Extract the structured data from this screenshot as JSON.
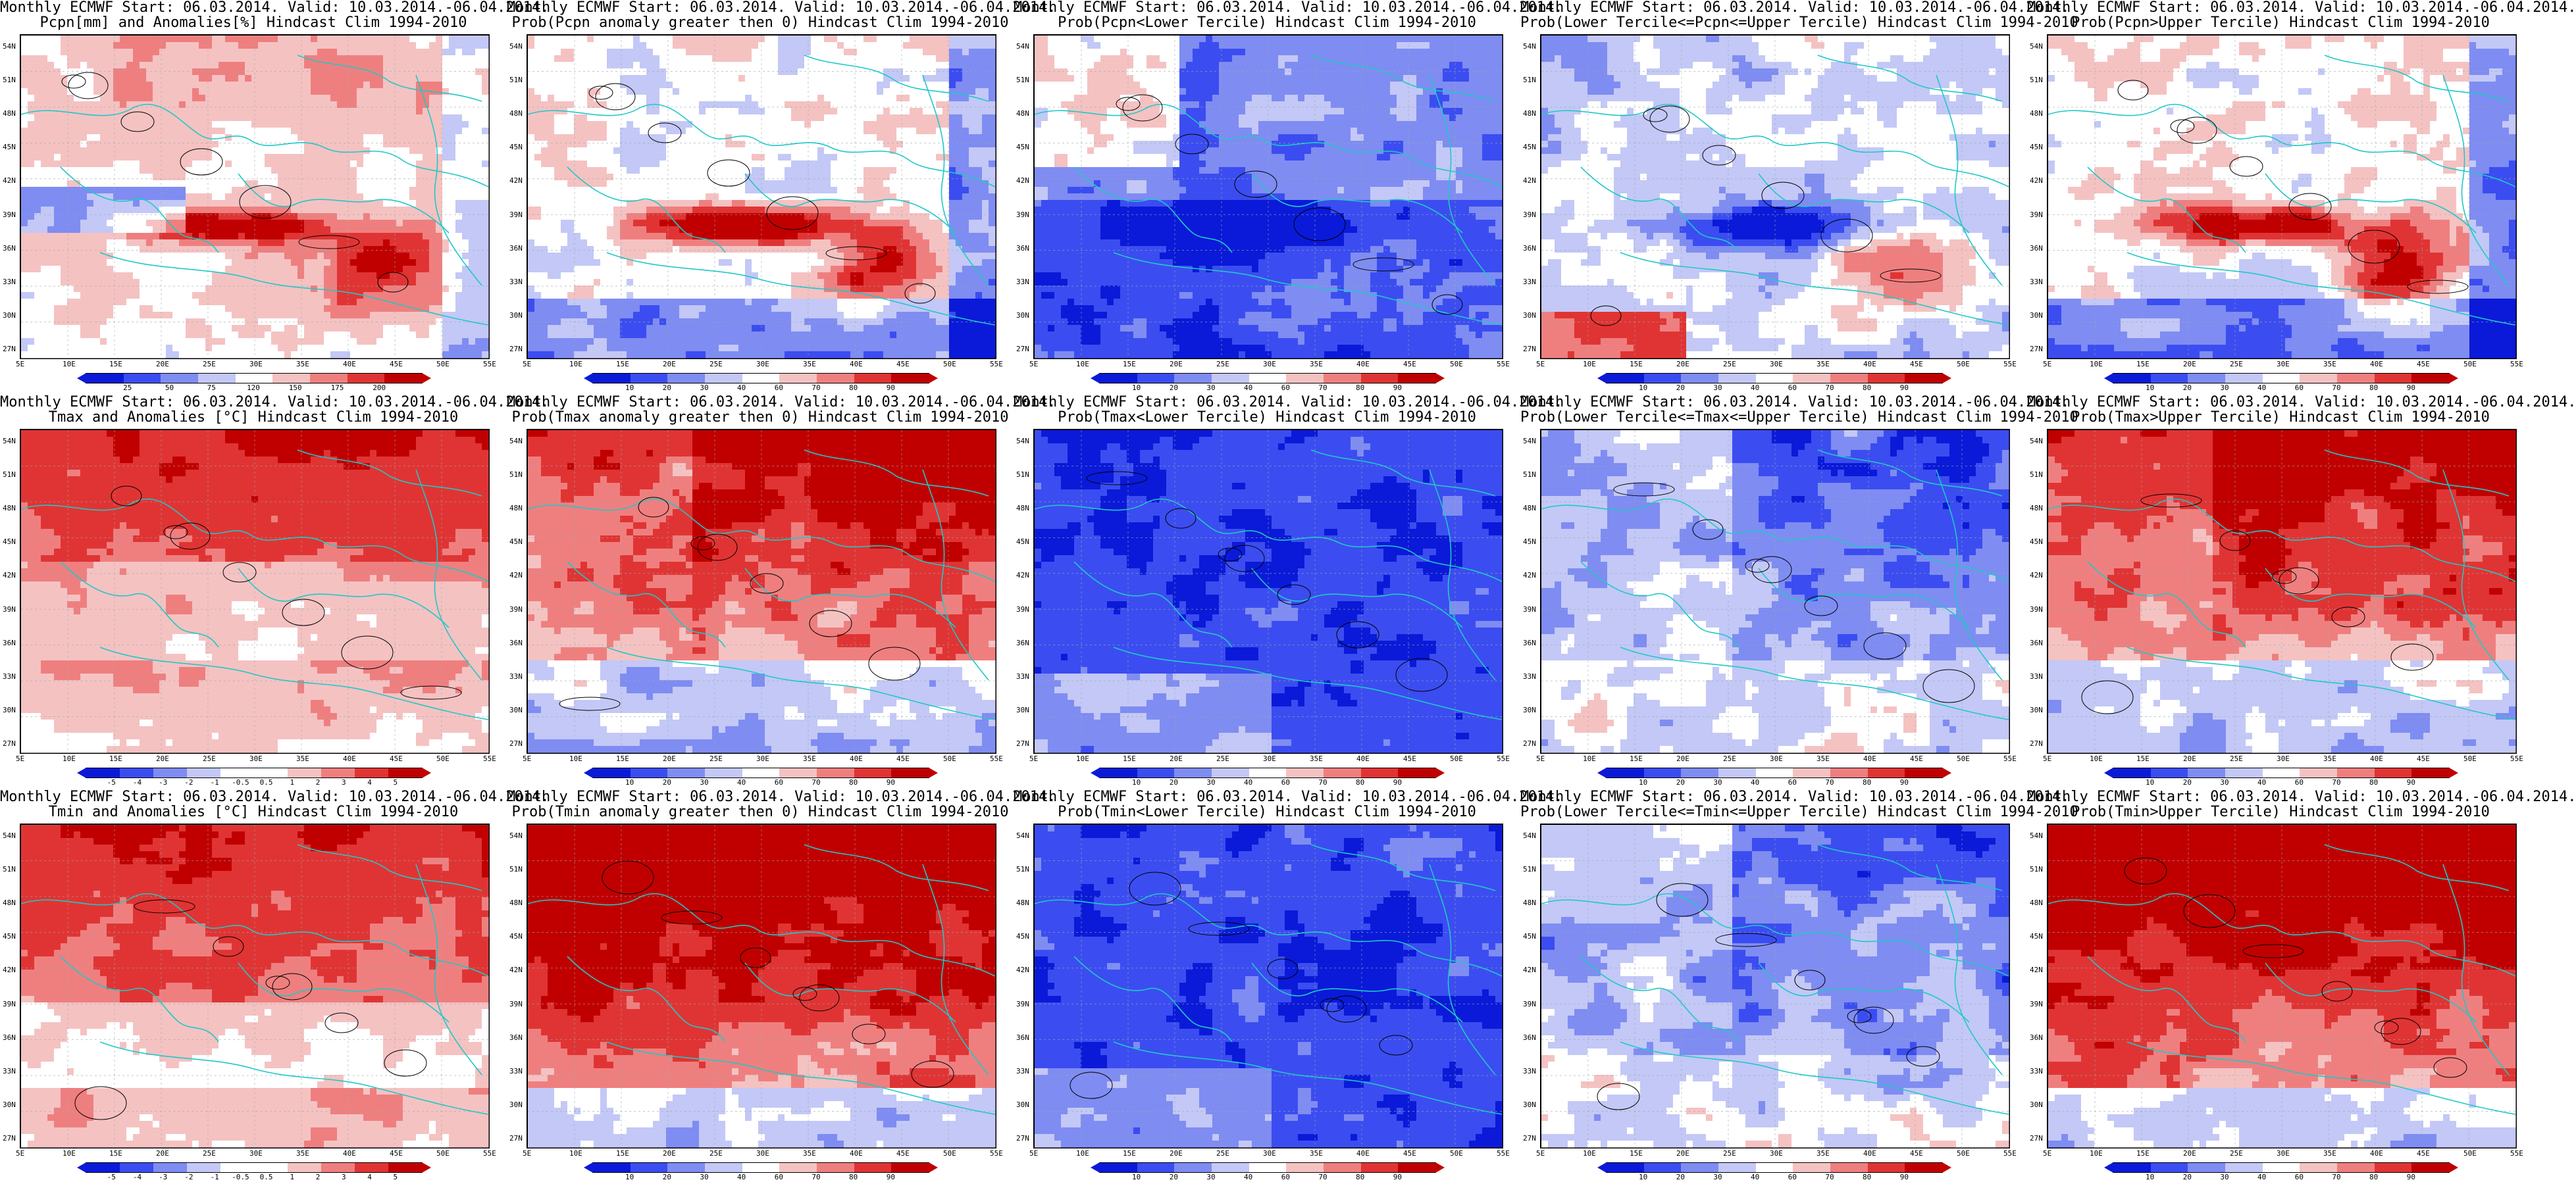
{
  "colors": {
    "dark_blue": "#0a1ad8",
    "blue": "#3b4df0",
    "mid_blue": "#7f8cf2",
    "light_blue": "#c3c8f6",
    "white": "#ffffff",
    "light_red": "#f5c2c2",
    "mid_red": "#ef7f7f",
    "red": "#e03434",
    "dark_red": "#c00000",
    "coast": "#20c8c8",
    "contour": "#000000"
  },
  "axes": {
    "lat_ticks": [
      "54N",
      "51N",
      "48N",
      "45N",
      "42N",
      "39N",
      "36N",
      "33N",
      "30N",
      "27N"
    ],
    "lon_ticks": [
      "5E",
      "10E",
      "15E",
      "20E",
      "25E",
      "30E",
      "35E",
      "40E",
      "45E",
      "50E",
      "55E"
    ]
  },
  "colorbars": {
    "pcpn_anom": {
      "ticks": [
        "25",
        "50",
        "75",
        "120",
        "150",
        "175",
        "200"
      ],
      "palette": [
        "dark_blue",
        "blue",
        "mid_blue",
        "light_blue",
        "white",
        "light_red",
        "mid_red",
        "red",
        "dark_red"
      ]
    },
    "prob": {
      "ticks": [
        "10",
        "20",
        "30",
        "40",
        "60",
        "70",
        "80",
        "90"
      ],
      "palette": [
        "dark_blue",
        "blue",
        "mid_blue",
        "light_blue",
        "white",
        "light_red",
        "mid_red",
        "red",
        "dark_red"
      ]
    },
    "temp_anom": {
      "ticks": [
        "-5",
        "-4",
        "-3",
        "-2",
        "-1",
        "-0.5",
        "0.5",
        "1",
        "2",
        "3",
        "4",
        "5"
      ],
      "palette": [
        "dark_blue",
        "blue",
        "mid_blue",
        "light_blue",
        "white",
        "white",
        "light_red",
        "mid_red",
        "red",
        "dark_red"
      ]
    }
  },
  "panels": [
    {
      "id": "p11",
      "row": 0,
      "col": 0,
      "title1": "Monthly ECMWF Start: 06.03.2014. Valid: 10.03.2014.-06.04.2014.",
      "title2": "Pcpn[mm] and Anomalies[%] Hindcast Clim 1994-2010",
      "bar": "pcpn_anom",
      "mode": "pcpn_anom"
    },
    {
      "id": "p12",
      "row": 0,
      "col": 1,
      "title1": "Monthly ECMWF Start: 06.03.2014. Valid: 10.03.2014.-06.04.2014.",
      "title2": "Prob(Pcpn anomaly greater then 0) Hindcast Clim 1994-2010",
      "bar": "prob",
      "mode": "pcpn_pos"
    },
    {
      "id": "p13",
      "row": 0,
      "col": 2,
      "title1": "Monthly ECMWF Start: 06.03.2014. Valid: 10.03.2014.-06.04.2014.",
      "title2": "Prob(Pcpn<Lower Tercile) Hindcast Clim 1994-2010",
      "bar": "prob",
      "mode": "pcpn_low"
    },
    {
      "id": "p14",
      "row": 0,
      "col": 3,
      "title1": "Monthly ECMWF Start: 06.03.2014. Valid: 10.03.2014.-06.04.2014.",
      "title2": "Prob(Lower Tercile<=Pcpn<=Upper Tercile) Hindcast Clim 1994-2010",
      "bar": "prob",
      "mode": "pcpn_mid"
    },
    {
      "id": "p15",
      "row": 0,
      "col": 4,
      "title1": "Monthly ECMWF Start: 06.03.2014. Valid: 10.03.2014.-06.04.2014.",
      "title2": "Prob(Pcpn>Upper Tercile) Hindcast Clim 1994-2010",
      "bar": "prob",
      "mode": "pcpn_pos"
    },
    {
      "id": "p21",
      "row": 1,
      "col": 0,
      "title1": "Monthly ECMWF Start: 06.03.2014. Valid: 10.03.2014.-06.04.2014.",
      "title2": "Tmax and Anomalies [°C] Hindcast Clim 1994-2010",
      "bar": "temp_anom",
      "mode": "tmax_anom"
    },
    {
      "id": "p22",
      "row": 1,
      "col": 1,
      "title1": "Monthly ECMWF Start: 06.03.2014. Valid: 10.03.2014.-06.04.2014.",
      "title2": "Prob(Tmax anomaly greater then 0) Hindcast Clim 1994-2010",
      "bar": "prob",
      "mode": "tmax_pos"
    },
    {
      "id": "p23",
      "row": 1,
      "col": 2,
      "title1": "Monthly ECMWF Start: 06.03.2014. Valid: 10.03.2014.-06.04.2014.",
      "title2": "Prob(Tmax<Lower Tercile) Hindcast Clim 1994-2010",
      "bar": "prob",
      "mode": "t_low"
    },
    {
      "id": "p24",
      "row": 1,
      "col": 3,
      "title1": "Monthly ECMWF Start: 06.03.2014. Valid: 10.03.2014.-06.04.2014.",
      "title2": "Prob(Lower Tercile<=Tmax<=Upper Tercile) Hindcast Clim 1994-2010",
      "bar": "prob",
      "mode": "t_mid"
    },
    {
      "id": "p25",
      "row": 1,
      "col": 4,
      "title1": "Monthly ECMWF Start: 06.03.2014. Valid: 10.03.2014.-06.04.2014.",
      "title2": "Prob(Tmax>Upper Tercile) Hindcast Clim 1994-2010",
      "bar": "prob",
      "mode": "tmax_pos"
    },
    {
      "id": "p31",
      "row": 2,
      "col": 0,
      "title1": "Monthly ECMWF Start: 06.03.2014. Valid: 10.03.2014.-06.04.2014.",
      "title2": "Tmin and Anomalies [°C] Hindcast Clim 1994-2010",
      "bar": "temp_anom",
      "mode": "tmin_anom"
    },
    {
      "id": "p32",
      "row": 2,
      "col": 1,
      "title1": "Monthly ECMWF Start: 06.03.2014. Valid: 10.03.2014.-06.04.2014.",
      "title2": "Prob(Tmin anomaly greater then 0) Hindcast Clim 1994-2010",
      "bar": "prob",
      "mode": "tmin_pos"
    },
    {
      "id": "p33",
      "row": 2,
      "col": 2,
      "title1": "Monthly ECMWF Start: 06.03.2014. Valid: 10.03.2014.-06.04.2014.",
      "title2": "Prob(Tmin<Lower Tercile) Hindcast Clim 1994-2010",
      "bar": "prob",
      "mode": "t_low"
    },
    {
      "id": "p34",
      "row": 2,
      "col": 3,
      "title1": "Monthly ECMWF Start: 06.03.2014. Valid: 10.03.2014.-06.04.2014.",
      "title2": "Prob(Lower Tercile<=Tmin<=Upper Tercile) Hindcast Clim 1994-2010",
      "bar": "prob",
      "mode": "t_mid"
    },
    {
      "id": "p35",
      "row": 2,
      "col": 4,
      "title1": "Monthly ECMWF Start: 06.03.2014. Valid: 10.03.2014.-06.04.2014.",
      "title2": "Prob(Tmin>Upper Tercile) Hindcast Clim 1994-2010",
      "bar": "prob",
      "mode": "tmin_pos"
    }
  ]
}
